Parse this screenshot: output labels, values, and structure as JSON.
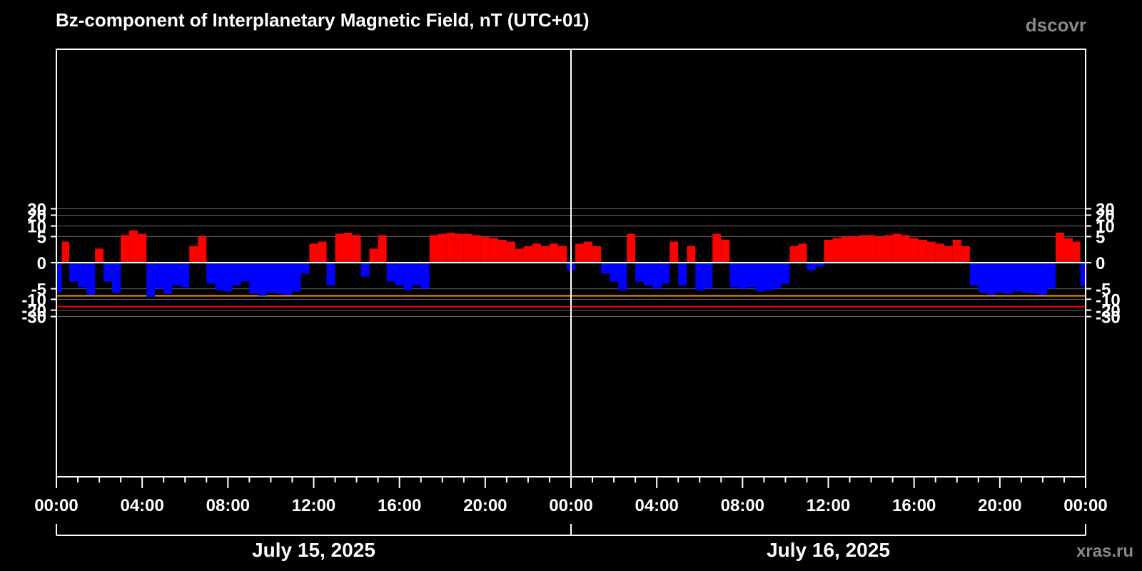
{
  "chart_data": {
    "type": "bar",
    "title": "Bz-component of Interplanetary Magnetic Field, nT (UTC+01)",
    "source": "dscovr",
    "credit": "xras.ru",
    "y_ticks": [
      30,
      20,
      10,
      5,
      0,
      -5,
      -10,
      -20,
      -30
    ],
    "y_tick_labels": [
      "30",
      "20",
      "10",
      "5",
      "0",
      "-5",
      "-10",
      "-20",
      "-30"
    ],
    "x_range_hours": [
      0,
      48
    ],
    "x_ticks_hours": [
      0,
      4,
      8,
      12,
      16,
      20,
      24,
      28,
      32,
      36,
      40,
      44,
      48
    ],
    "x_tick_labels": [
      "00:00",
      "04:00",
      "08:00",
      "12:00",
      "16:00",
      "20:00",
      "00:00",
      "04:00",
      "08:00",
      "12:00",
      "16:00",
      "20:00",
      "00:00"
    ],
    "dates": [
      {
        "label": "July 15, 2025",
        "start_hour": 0,
        "end_hour": 24
      },
      {
        "label": "July 16, 2025",
        "start_hour": 24,
        "end_hour": 48
      }
    ],
    "thresholds": [
      {
        "value": -8,
        "color": "#ff9900"
      },
      {
        "value": -16,
        "color": "#ff0000"
      }
    ],
    "colors": {
      "positive": "#ff0000",
      "negative": "#0000ff",
      "background": "#000000",
      "grid": "#666666",
      "axis": "#ffffff"
    },
    "series": {
      "name": "Bz",
      "hours": [
        0.1,
        0.4,
        0.8,
        1.2,
        1.6,
        2.0,
        2.4,
        2.8,
        3.2,
        3.6,
        4.0,
        4.4,
        4.8,
        5.2,
        5.6,
        6.0,
        6.4,
        6.8,
        7.2,
        7.6,
        8.0,
        8.4,
        8.8,
        9.2,
        9.6,
        10.0,
        10.4,
        10.8,
        11.2,
        11.6,
        12.0,
        12.4,
        12.8,
        13.2,
        13.6,
        14.0,
        14.4,
        14.8,
        15.2,
        15.6,
        16.0,
        16.4,
        16.8,
        17.2,
        17.6,
        18.0,
        18.4,
        18.8,
        19.2,
        19.6,
        20.0,
        20.4,
        20.8,
        21.2,
        21.6,
        22.0,
        22.4,
        22.8,
        23.2,
        23.6,
        24.0,
        24.4,
        24.8,
        25.2,
        25.6,
        26.0,
        26.4,
        26.8,
        27.2,
        27.6,
        28.0,
        28.4,
        28.8,
        29.2,
        29.6,
        30.0,
        30.4,
        30.8,
        31.2,
        31.6,
        32.0,
        32.4,
        32.8,
        33.2,
        33.6,
        34.0,
        34.4,
        34.8,
        35.2,
        35.6,
        36.0,
        36.4,
        36.8,
        37.2,
        37.6,
        38.0,
        38.4,
        38.8,
        39.2,
        39.6,
        40.0,
        40.4,
        40.8,
        41.2,
        41.6,
        42.0,
        42.4,
        42.8,
        43.2,
        43.6,
        44.0,
        44.4,
        44.8,
        45.2,
        45.6,
        46.0,
        46.4,
        46.8,
        47.2,
        47.6,
        47.9
      ],
      "values": [
        -6.5,
        3.5,
        -3.0,
        -4.5,
        -7.5,
        2.0,
        -3.0,
        -6.5,
        5.5,
        7.5,
        6.0,
        -8.5,
        -5.0,
        -7.0,
        -4.0,
        -4.5,
        2.5,
        5.0,
        -3.5,
        -5.5,
        -6.0,
        -4.0,
        -3.0,
        -7.0,
        -8.0,
        -6.5,
        -7.0,
        -7.5,
        -6.0,
        -1.5,
        3.0,
        3.5,
        -4.0,
        6.0,
        6.5,
        5.5,
        -2.0,
        2.0,
        5.5,
        -3.0,
        -4.0,
        -5.5,
        -4.0,
        -5.0,
        5.5,
        6.0,
        6.5,
        6.0,
        6.0,
        5.5,
        5.0,
        4.5,
        4.0,
        3.5,
        2.0,
        2.5,
        3.0,
        2.5,
        3.0,
        2.5,
        -1.0,
        3.0,
        3.5,
        2.5,
        -1.5,
        -3.0,
        -5.5,
        6.0,
        -3.0,
        -4.0,
        -5.0,
        -3.5,
        3.5,
        -4.0,
        2.5,
        -5.5,
        -5.0,
        6.0,
        4.0,
        -4.5,
        -5.0,
        -4.5,
        -6.0,
        -5.5,
        -5.0,
        -3.5,
        2.5,
        3.0,
        -1.0,
        -0.5,
        4.0,
        4.5,
        5.0,
        5.0,
        5.5,
        5.5,
        5.0,
        5.5,
        6.0,
        5.5,
        4.5,
        4.0,
        3.5,
        3.0,
        2.5,
        4.0,
        2.5,
        -4.0,
        -6.5,
        -7.5,
        -6.5,
        -7.0,
        -6.0,
        -6.5,
        -7.0,
        -7.5,
        -5.0,
        6.5,
        4.5,
        3.5,
        -4.0
      ]
    }
  }
}
